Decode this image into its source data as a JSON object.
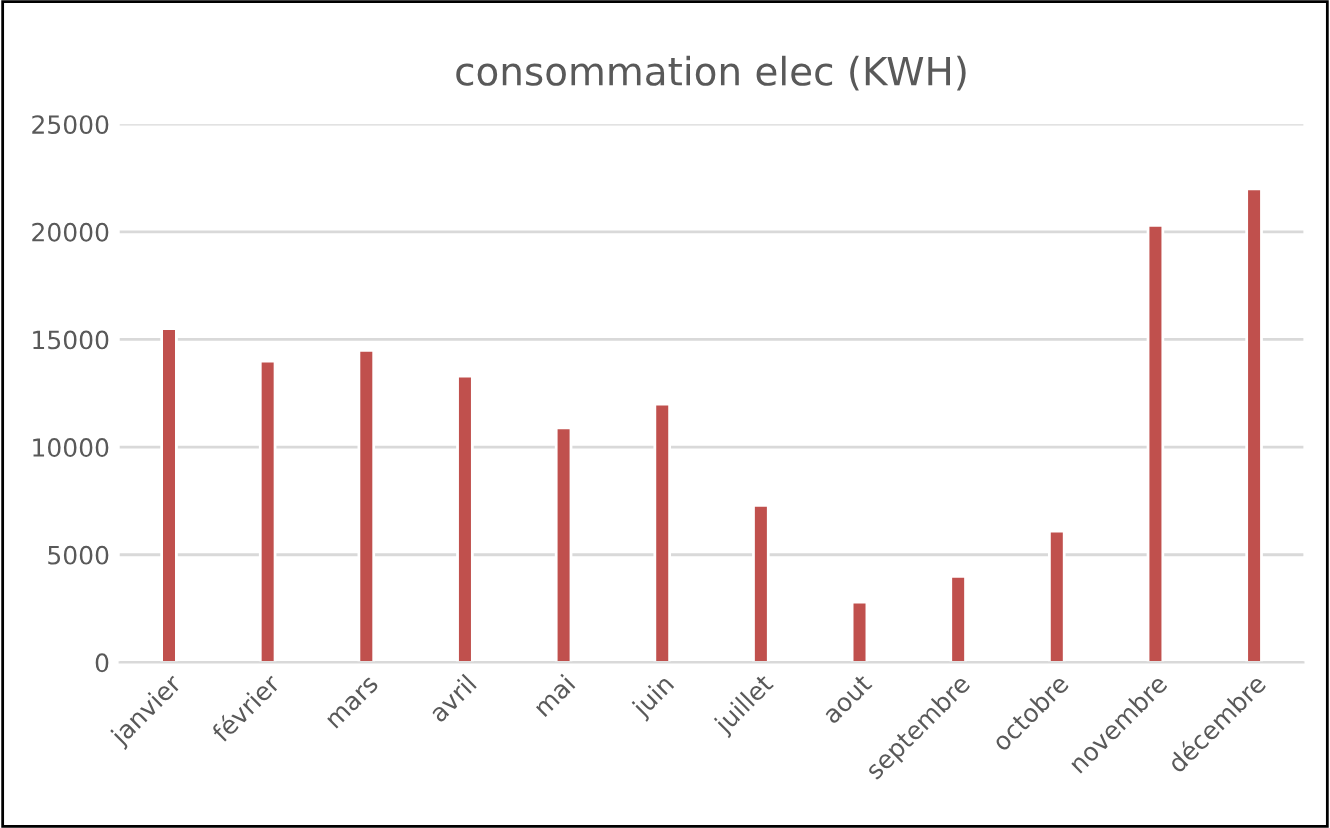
{
  "chart_data": {
    "type": "bar",
    "title": "consommation elec (KWH)",
    "categories": [
      "janvier",
      "février",
      "mars",
      "avril",
      "mai",
      "juin",
      "juillet",
      "aout",
      "septembre",
      "octobre",
      "novembre",
      "décembre"
    ],
    "values": [
      15500,
      14000,
      14500,
      13300,
      10900,
      12000,
      7300,
      2800,
      4000,
      6100,
      20300,
      22000
    ],
    "color": "#c0504d",
    "ylim": [
      0,
      25000
    ],
    "yticks": [
      0,
      5000,
      10000,
      15000,
      20000,
      25000
    ],
    "grid": "y"
  }
}
